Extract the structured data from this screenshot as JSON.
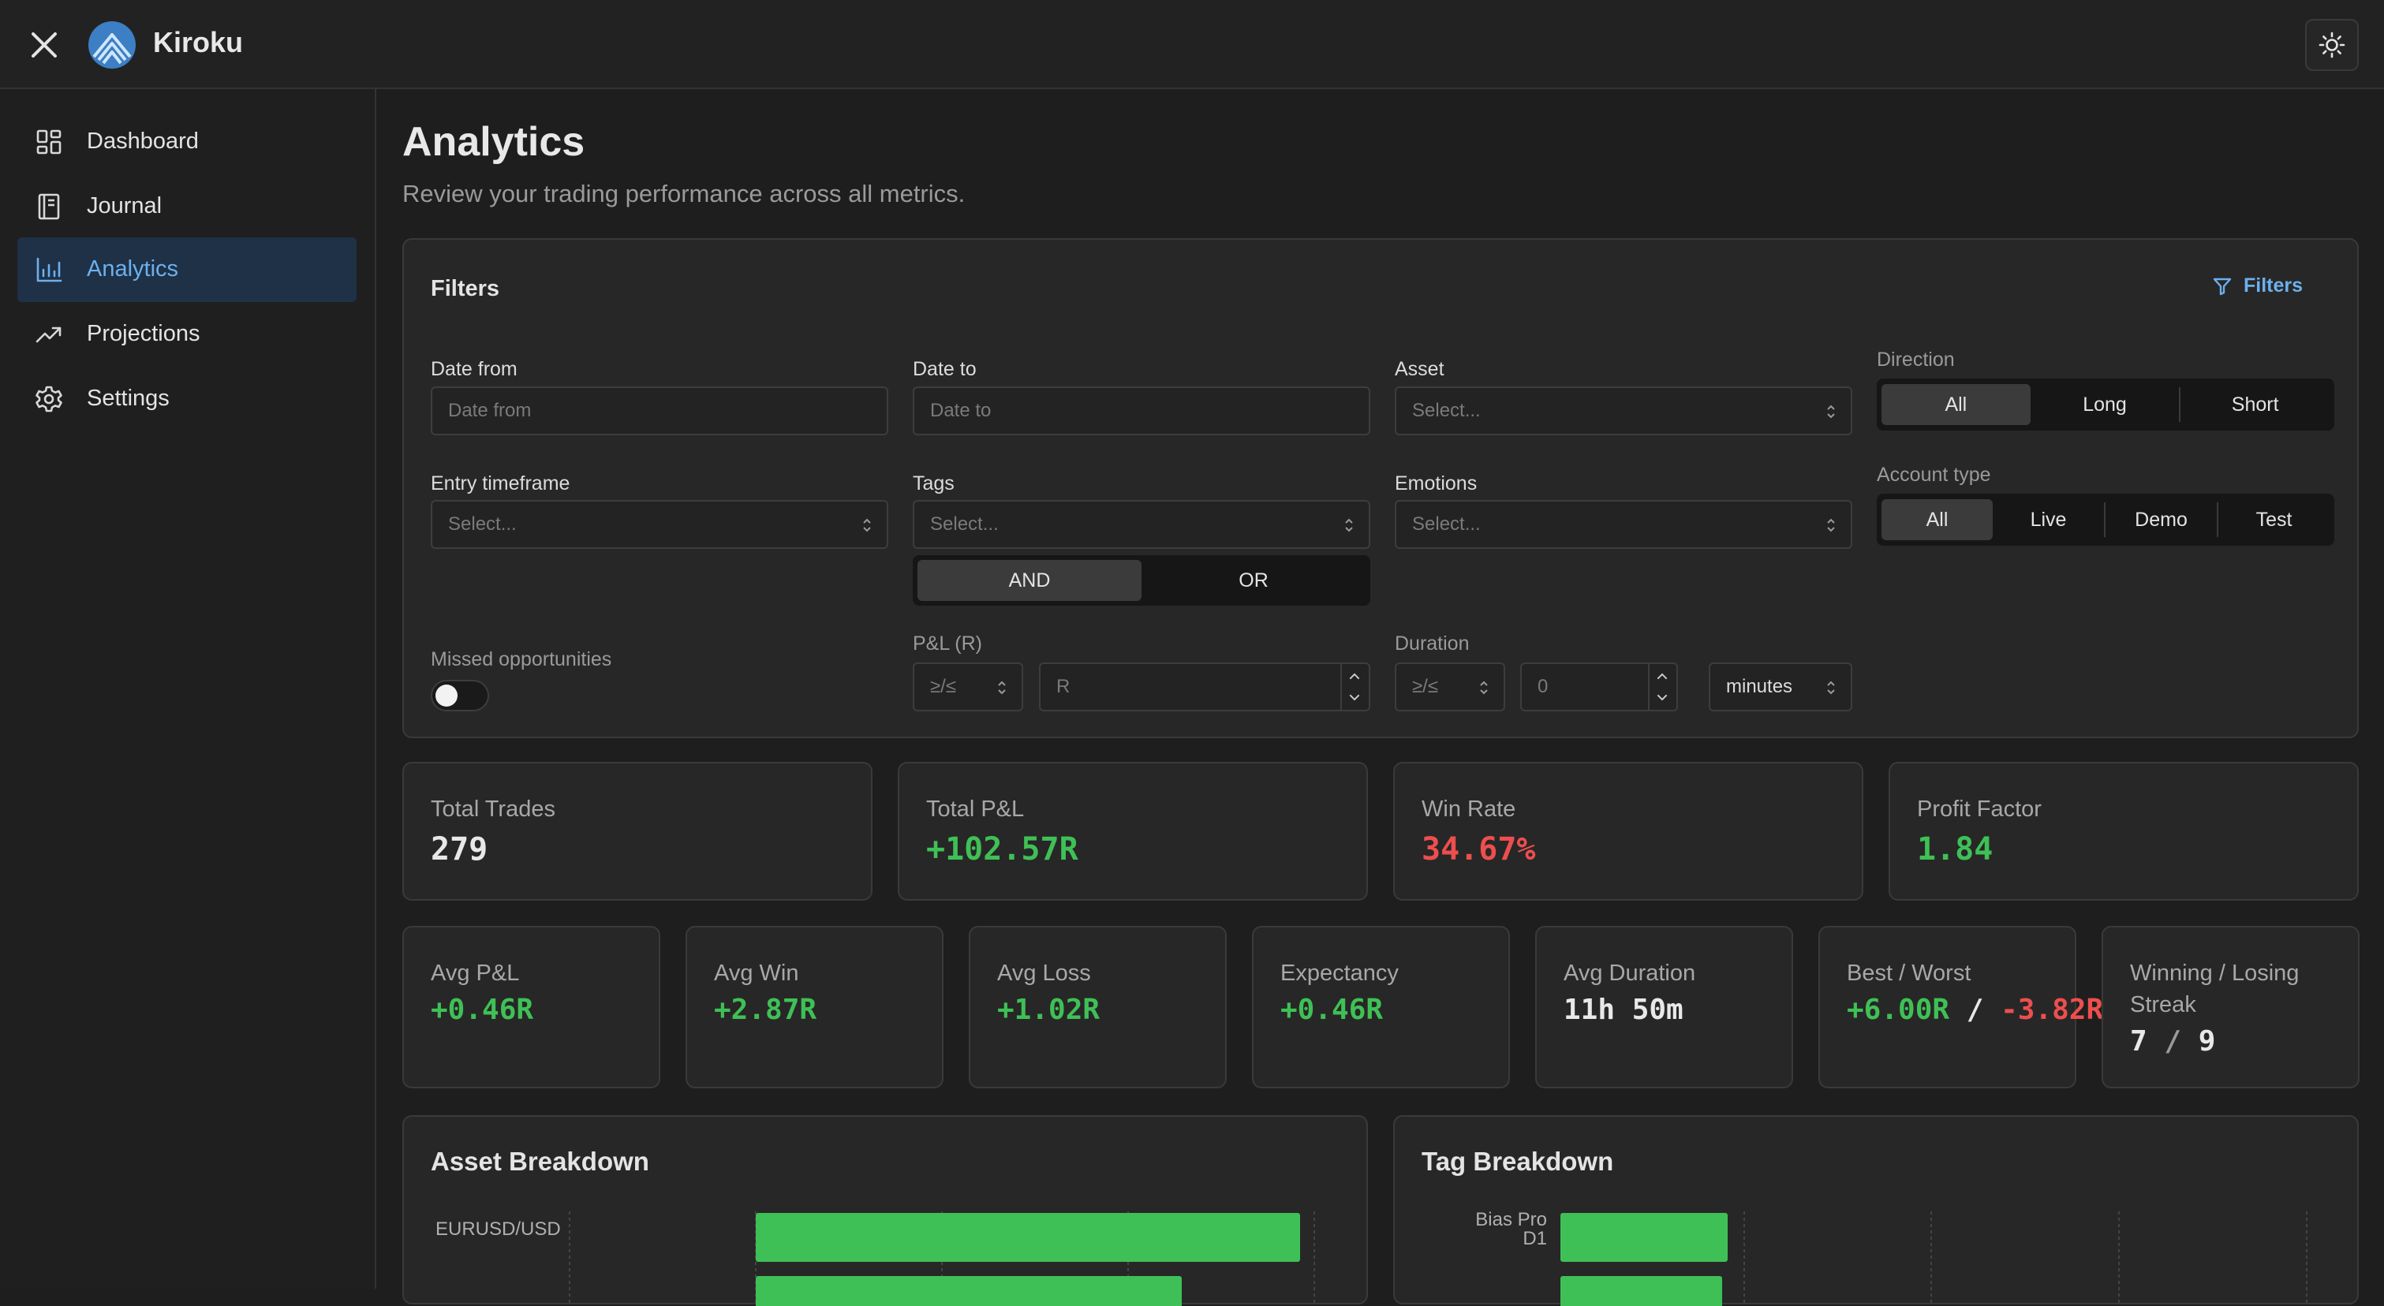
{
  "app": {
    "name": "Kiroku"
  },
  "icons": {
    "close": "close-icon",
    "logo": "kiroku-logo",
    "theme": "sun-icon"
  },
  "sidebar": {
    "items": [
      {
        "label": "Dashboard",
        "icon": "dashboard-icon",
        "active": false
      },
      {
        "label": "Journal",
        "icon": "journal-icon",
        "active": false
      },
      {
        "label": "Analytics",
        "icon": "analytics-icon",
        "active": true
      },
      {
        "label": "Projections",
        "icon": "trending-up-icon",
        "active": false
      },
      {
        "label": "Settings",
        "icon": "gear-icon",
        "active": false
      }
    ]
  },
  "page": {
    "title": "Analytics",
    "subtitle": "Review your trading performance across all metrics."
  },
  "filters": {
    "title": "Filters",
    "toggle_label": "Filters",
    "date_from": {
      "label": "Date from",
      "placeholder": "Date from"
    },
    "date_to": {
      "label": "Date to",
      "placeholder": "Date to"
    },
    "asset": {
      "label": "Asset",
      "placeholder": "Select..."
    },
    "direction": {
      "label": "Direction",
      "options": [
        "All",
        "Long",
        "Short"
      ],
      "selected": "All"
    },
    "entry_timeframe": {
      "label": "Entry timeframe",
      "placeholder": "Select..."
    },
    "tags": {
      "label": "Tags",
      "placeholder": "Select...",
      "logic_options": [
        "AND",
        "OR"
      ],
      "logic_selected": "AND"
    },
    "emotions": {
      "label": "Emotions",
      "placeholder": "Select..."
    },
    "account_type": {
      "label": "Account type",
      "options": [
        "All",
        "Live",
        "Demo",
        "Test"
      ],
      "selected": "All"
    },
    "missed_opportunities": {
      "label": "Missed opportunities",
      "enabled": false
    },
    "pnl": {
      "label": "P&L (R)",
      "operator": "≥/≤",
      "placeholder": "R"
    },
    "duration": {
      "label": "Duration",
      "operator": "≥/≤",
      "placeholder": "0",
      "unit": "minutes"
    }
  },
  "stats_primary": [
    {
      "label": "Total Trades",
      "value": "279",
      "tone": "white"
    },
    {
      "label": "Total P&L",
      "value": "+102.57R",
      "tone": "green"
    },
    {
      "label": "Win Rate",
      "value": "34.67%",
      "tone": "red"
    },
    {
      "label": "Profit Factor",
      "value": "1.84",
      "tone": "green"
    }
  ],
  "stats_secondary": {
    "avg_pnl": {
      "label": "Avg P&L",
      "value": "+0.46R"
    },
    "avg_win": {
      "label": "Avg Win",
      "value": "+2.87R"
    },
    "avg_loss": {
      "label": "Avg Loss",
      "value": "+1.02R"
    },
    "expectancy": {
      "label": "Expectancy",
      "value": "+0.46R"
    },
    "avg_duration": {
      "label": "Avg Duration",
      "value": "11h 50m"
    },
    "best_worst": {
      "label": "Best / Worst",
      "best": "+6.00R",
      "sep": "/",
      "worst": "-3.82R"
    },
    "streak": {
      "label_line1": "Winning / Losing",
      "label_line2": "Streak",
      "winning": "7",
      "sep": "/",
      "losing": "9"
    }
  },
  "asset_breakdown": {
    "title": "Asset Breakdown",
    "chart_data": {
      "type": "bar",
      "orientation": "horizontal",
      "categories": [
        "EURUSD/USD"
      ],
      "values": [
        1.0
      ],
      "value_scale": "relative",
      "bar_color": "#3fc056",
      "note_partial": true
    }
  },
  "tag_breakdown": {
    "title": "Tag Breakdown",
    "chart_data": {
      "type": "bar",
      "orientation": "horizontal",
      "categories": [
        "Bias Pro D1"
      ],
      "category_lines": [
        "Bias Pro",
        "D1"
      ],
      "values": [
        1.0
      ],
      "value_scale": "relative",
      "bar_color": "#3fc056"
    }
  },
  "colors": {
    "accent": "#6cb0ee",
    "positive": "#3fc056",
    "negative": "#ee4e4e",
    "active_nav": "#1f3146"
  }
}
